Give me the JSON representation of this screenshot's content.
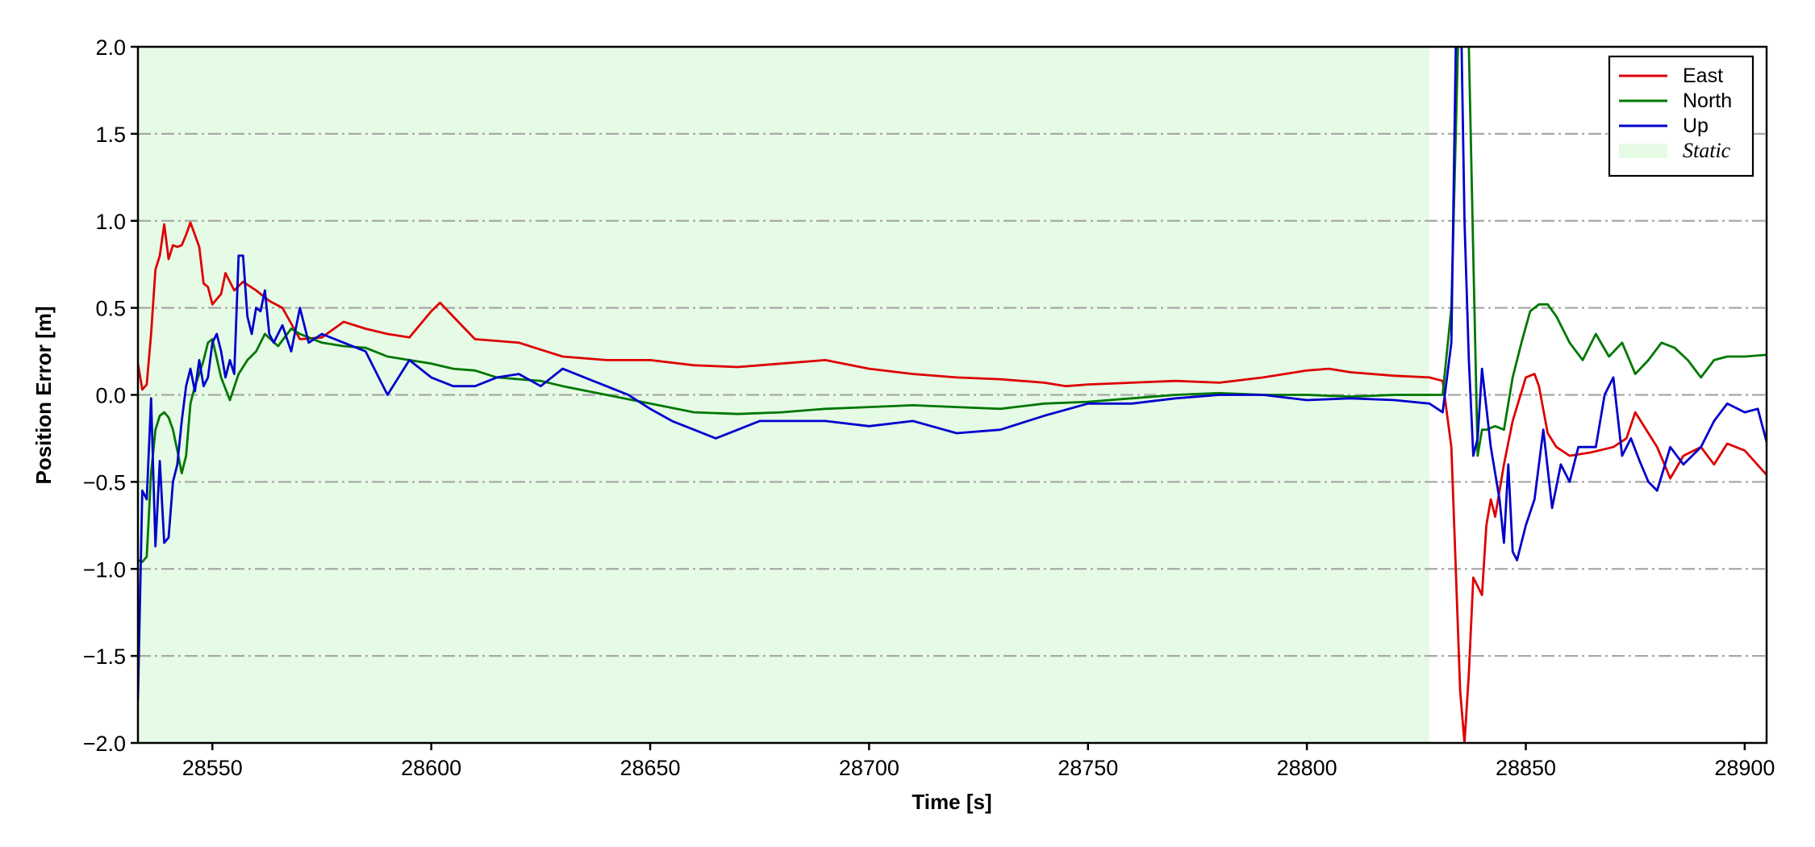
{
  "chart_data": {
    "type": "line",
    "xlabel": "Time [s]",
    "ylabel": "Position Error [m]",
    "xlim": [
      28533,
      28905
    ],
    "ylim": [
      -2.0,
      2.0
    ],
    "x_ticks": [
      28550,
      28600,
      28650,
      28700,
      28750,
      28800,
      28850,
      28900
    ],
    "x_tick_labels": [
      "28550",
      "28600",
      "28650",
      "28700",
      "28750",
      "28800",
      "28850",
      "28900"
    ],
    "y_ticks": [
      -2.0,
      -1.5,
      -1.0,
      -0.5,
      0.0,
      0.5,
      1.0,
      1.5,
      2.0
    ],
    "y_tick_labels": [
      "−2.0",
      "−1.5",
      "−1.0",
      "−0.5",
      "0.0",
      "0.5",
      "1.0",
      "1.5",
      "2.0"
    ],
    "grid": "horizontal dash-dot",
    "legend_position": "top-right",
    "shaded_region": {
      "label": "Static",
      "x_start": 28533,
      "x_end": 28828,
      "color": "#e6fbe6"
    },
    "series": [
      {
        "name": "East",
        "color": "#dd0000",
        "x": [
          28533,
          28534,
          28535,
          28536,
          28537,
          28538,
          28539,
          28540,
          28541,
          28542,
          28543,
          28544,
          28545,
          28546,
          28547,
          28548,
          28549,
          28550,
          28552,
          28553,
          28555,
          28557,
          28560,
          28563,
          28566,
          28570,
          28575,
          28580,
          28585,
          28590,
          28595,
          28600,
          28602,
          28605,
          28610,
          28615,
          28620,
          28625,
          28630,
          28640,
          28650,
          28660,
          28670,
          28680,
          28690,
          28700,
          28710,
          28720,
          28730,
          28740,
          28745,
          28750,
          28760,
          28770,
          28780,
          28790,
          28800,
          28805,
          28810,
          28820,
          28828,
          28831,
          28833,
          28834,
          28835,
          28836,
          28837,
          28838,
          28839,
          28840,
          28841,
          28842,
          28843,
          28845,
          28847,
          28850,
          28852,
          28853,
          28855,
          28857,
          28860,
          28865,
          28870,
          28873,
          28875,
          28880,
          28883,
          28886,
          28890,
          28893,
          28896,
          28900,
          28905
        ],
        "y": [
          0.18,
          0.03,
          0.06,
          0.35,
          0.72,
          0.8,
          0.98,
          0.78,
          0.86,
          0.85,
          0.86,
          0.92,
          0.99,
          0.92,
          0.85,
          0.64,
          0.62,
          0.52,
          0.58,
          0.7,
          0.6,
          0.65,
          0.6,
          0.54,
          0.5,
          0.32,
          0.33,
          0.42,
          0.38,
          0.35,
          0.33,
          0.48,
          0.53,
          0.45,
          0.32,
          0.31,
          0.3,
          0.26,
          0.22,
          0.2,
          0.2,
          0.17,
          0.16,
          0.18,
          0.2,
          0.15,
          0.12,
          0.1,
          0.09,
          0.07,
          0.05,
          0.06,
          0.07,
          0.08,
          0.07,
          0.1,
          0.14,
          0.15,
          0.13,
          0.11,
          0.1,
          0.08,
          -0.3,
          -1.0,
          -1.7,
          -2.0,
          -1.6,
          -1.05,
          -1.1,
          -1.15,
          -0.75,
          -0.6,
          -0.7,
          -0.4,
          -0.15,
          0.1,
          0.12,
          0.05,
          -0.22,
          -0.3,
          -0.35,
          -0.33,
          -0.3,
          -0.25,
          -0.1,
          -0.3,
          -0.48,
          -0.35,
          -0.3,
          -0.4,
          -0.28,
          -0.32,
          -0.46
        ]
      },
      {
        "name": "North",
        "color": "#007700",
        "x": [
          28533,
          28534,
          28535,
          28536,
          28537,
          28538,
          28539,
          28540,
          28541,
          28542,
          28543,
          28544,
          28545,
          28546,
          28547,
          28548,
          28549,
          28550,
          28552,
          28554,
          28556,
          28558,
          28560,
          28562,
          28565,
          28568,
          28570,
          28575,
          28580,
          28585,
          28590,
          28595,
          28600,
          28605,
          28610,
          28615,
          28620,
          28625,
          28630,
          28640,
          28650,
          28660,
          28670,
          28680,
          28690,
          28700,
          28710,
          28720,
          28730,
          28740,
          28750,
          28760,
          28770,
          28780,
          28790,
          28800,
          28810,
          28820,
          28828,
          28831,
          28833,
          28834,
          28835,
          28836,
          28837,
          28838,
          28839,
          28840,
          28841,
          28843,
          28845,
          28847,
          28849,
          28851,
          28853,
          28855,
          28857,
          28860,
          28863,
          28866,
          28869,
          28872,
          28875,
          28878,
          28881,
          28884,
          28887,
          28890,
          28893,
          28896,
          28900,
          28905
        ],
        "y": [
          -0.95,
          -0.96,
          -0.93,
          -0.45,
          -0.2,
          -0.12,
          -0.1,
          -0.13,
          -0.2,
          -0.32,
          -0.45,
          -0.35,
          -0.05,
          0.05,
          0.12,
          0.2,
          0.3,
          0.32,
          0.1,
          -0.03,
          0.12,
          0.2,
          0.25,
          0.35,
          0.28,
          0.38,
          0.35,
          0.3,
          0.28,
          0.27,
          0.22,
          0.2,
          0.18,
          0.15,
          0.14,
          0.1,
          0.09,
          0.08,
          0.05,
          0.0,
          -0.05,
          -0.1,
          -0.11,
          -0.1,
          -0.08,
          -0.07,
          -0.06,
          -0.07,
          -0.08,
          -0.05,
          -0.04,
          -0.02,
          0.0,
          0.01,
          0.0,
          0.0,
          -0.01,
          0.0,
          0.0,
          0.0,
          0.5,
          1.5,
          2.5,
          3.5,
          2.0,
          0.8,
          -0.35,
          -0.2,
          -0.2,
          -0.18,
          -0.2,
          0.1,
          0.3,
          0.48,
          0.52,
          0.52,
          0.45,
          0.3,
          0.2,
          0.35,
          0.22,
          0.3,
          0.12,
          0.2,
          0.3,
          0.27,
          0.2,
          0.1,
          0.2,
          0.22,
          0.22,
          0.23
        ]
      },
      {
        "name": "Up",
        "color": "#0000cc",
        "x": [
          28533,
          28534,
          28535,
          28536,
          28537,
          28538,
          28539,
          28540,
          28541,
          28542,
          28543,
          28544,
          28545,
          28546,
          28547,
          28548,
          28549,
          28550,
          28551,
          28552,
          28553,
          28554,
          28555,
          28556,
          28557,
          28558,
          28559,
          28560,
          28561,
          28562,
          28563,
          28564,
          28566,
          28568,
          28570,
          28572,
          28575,
          28580,
          28585,
          28590,
          28595,
          28600,
          28605,
          28610,
          28615,
          28620,
          28625,
          28630,
          28635,
          28640,
          28645,
          28650,
          28655,
          28660,
          28665,
          28670,
          28675,
          28680,
          28690,
          28700,
          28710,
          28720,
          28730,
          28740,
          28750,
          28760,
          28770,
          28780,
          28790,
          28800,
          28810,
          28820,
          28828,
          28831,
          28833,
          28834,
          28835,
          28836,
          28837,
          28838,
          28839,
          28840,
          28842,
          28844,
          28845,
          28846,
          28847,
          28848,
          28850,
          28852,
          28854,
          28856,
          28858,
          28860,
          28862,
          28864,
          28866,
          28868,
          28870,
          28872,
          28874,
          28876,
          28878,
          28880,
          28883,
          28886,
          28890,
          28893,
          28896,
          28900,
          28903,
          28905
        ],
        "y": [
          -1.75,
          -0.55,
          -0.6,
          -0.02,
          -0.87,
          -0.38,
          -0.85,
          -0.82,
          -0.5,
          -0.4,
          -0.15,
          0.05,
          0.15,
          0.02,
          0.2,
          0.05,
          0.1,
          0.3,
          0.35,
          0.25,
          0.1,
          0.2,
          0.12,
          0.8,
          0.8,
          0.45,
          0.35,
          0.5,
          0.48,
          0.6,
          0.35,
          0.3,
          0.4,
          0.25,
          0.5,
          0.3,
          0.35,
          0.3,
          0.25,
          0.0,
          0.2,
          0.1,
          0.05,
          0.05,
          0.1,
          0.12,
          0.05,
          0.15,
          0.1,
          0.05,
          0.0,
          -0.08,
          -0.15,
          -0.2,
          -0.25,
          -0.2,
          -0.15,
          -0.15,
          -0.15,
          -0.18,
          -0.15,
          -0.22,
          -0.2,
          -0.12,
          -0.05,
          -0.05,
          -0.02,
          0.0,
          0.0,
          -0.03,
          -0.02,
          -0.03,
          -0.05,
          -0.1,
          0.3,
          2.0,
          2.5,
          1.0,
          0.2,
          -0.35,
          -0.25,
          0.15,
          -0.3,
          -0.6,
          -0.85,
          -0.4,
          -0.9,
          -0.95,
          -0.75,
          -0.6,
          -0.2,
          -0.65,
          -0.4,
          -0.5,
          -0.3,
          -0.3,
          -0.3,
          0.0,
          0.1,
          -0.35,
          -0.25,
          -0.38,
          -0.5,
          -0.55,
          -0.3,
          -0.4,
          -0.3,
          -0.15,
          -0.05,
          -0.1,
          -0.08,
          -0.27
        ]
      }
    ]
  }
}
